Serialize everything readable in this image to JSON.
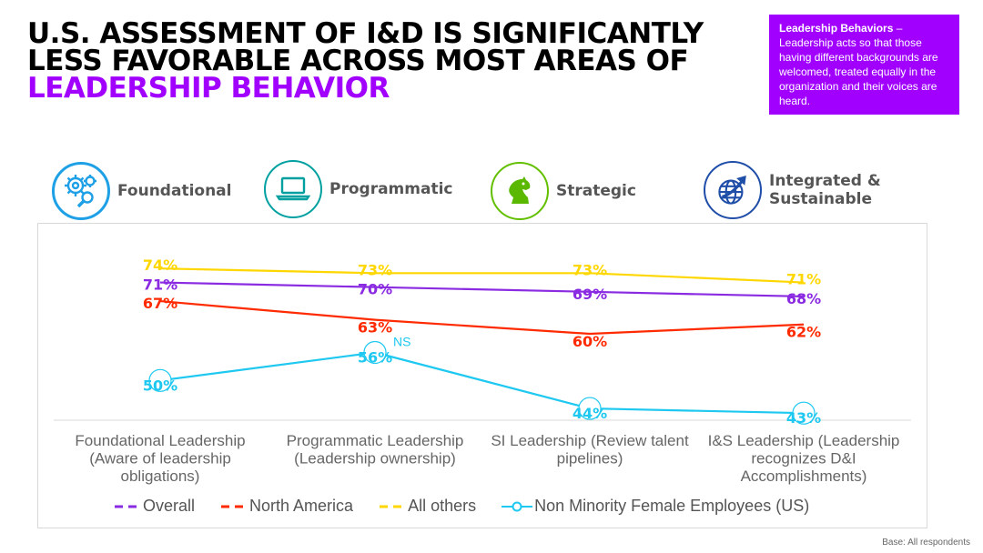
{
  "title": {
    "line_main": "U.S. ASSESSMENT OF I&D IS SIGNIFICANTLY LESS FAVORABLE ACROSS MOST AREAS OF",
    "line_highlight": "LEADERSHIP BEHAVIOR",
    "highlight_color": "#a100ff"
  },
  "definition": {
    "term": "Leadership Behaviors",
    "dash": " – ",
    "text": "Leadership acts so that those having different backgrounds are welcomed, treated equally in the organization and their voices are heard."
  },
  "pillars": [
    {
      "label": "Foundational",
      "icon": "gears-magnifier-icon"
    },
    {
      "label": "Programmatic",
      "icon": "laptop-icon"
    },
    {
      "label": "Strategic",
      "icon": "chess-knight-icon"
    },
    {
      "label": "Integrated & Sustainable",
      "icon": "globe-arrow-icon"
    }
  ],
  "chart_data": {
    "type": "line",
    "categories": [
      [
        "Foundational Leadership",
        "(Aware of leadership",
        "obligations)"
      ],
      [
        "Programmatic Leadership",
        "(Leadership ownership)"
      ],
      [
        "SI Leadership (Review talent",
        "pipelines)"
      ],
      [
        "I&S Leadership (Leadership",
        "recognizes D&I",
        "Accomplishments)"
      ]
    ],
    "series": [
      {
        "name": "Overall",
        "values": [
          71,
          70,
          69,
          68
        ],
        "color": "#8a2be2",
        "dash": true
      },
      {
        "name": "North America",
        "values": [
          67,
          63,
          60,
          62
        ],
        "color": "#ff2a00",
        "dash": true
      },
      {
        "name": "All others",
        "values": [
          74,
          73,
          73,
          71
        ],
        "color": "#ffd700",
        "dash": true
      },
      {
        "name": "Non Minority Female Employees (US)",
        "values": [
          50,
          56,
          44,
          43
        ],
        "color": "#1ec8f0",
        "dash": false,
        "markers": true
      }
    ],
    "value_suffix": "%",
    "annotations": [
      {
        "series": 3,
        "index": 1,
        "text": "NS"
      }
    ],
    "grid": false,
    "legend_position": "bottom"
  },
  "footer": {
    "base": "Base: All respondents"
  }
}
